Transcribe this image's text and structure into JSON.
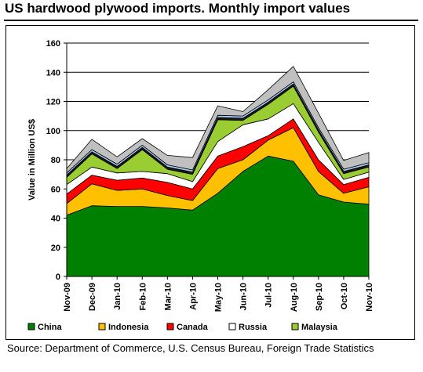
{
  "title": "US hardwood plywood imports. Monthly import values",
  "source": "Source: Department of Commerce, U.S. Census Bureau, Foreign Trade Statistics",
  "chart_data": {
    "type": "area",
    "stacked": true,
    "ylabel": "Value in Million US$",
    "ylim": [
      0,
      160
    ],
    "yticks": [
      0,
      20,
      40,
      60,
      80,
      100,
      120,
      140,
      160
    ],
    "grid": true,
    "legend_position": "bottom",
    "categories": [
      "Nov-09",
      "Dec-09",
      "Jan-10",
      "Feb-10",
      "Mar-10",
      "Apr-10",
      "May-10",
      "Jun-10",
      "Jul-10",
      "Aug-10",
      "Sep-10",
      "Oct-10",
      "Nov-10"
    ],
    "series": [
      {
        "name": "China",
        "color": "#008000",
        "values": [
          42,
          48.5,
          48,
          48,
          47,
          45.5,
          57,
          72,
          82.5,
          79,
          56,
          51,
          49.5
        ],
        "in_legend": true
      },
      {
        "name": "Indonesia",
        "color": "#FFC000",
        "values": [
          8,
          15,
          11,
          12,
          8.5,
          6.5,
          17,
          8,
          11,
          23,
          16,
          6,
          12
        ],
        "in_legend": true
      },
      {
        "name": "Canada",
        "color": "#FF0000",
        "values": [
          6.5,
          6,
          7,
          7.5,
          9,
          8,
          8.5,
          9,
          3,
          6,
          8,
          6,
          6.5
        ],
        "in_legend": true
      },
      {
        "name": "Russia",
        "color": "#FFFFFF",
        "values": [
          6.5,
          5.5,
          5,
          4.5,
          6,
          5,
          10,
          15,
          11.5,
          10.5,
          12,
          3.5,
          3.5
        ],
        "in_legend": true
      },
      {
        "name": "Malaysia",
        "color": "#9ACD32",
        "values": [
          5,
          9,
          3,
          15,
          3,
          5,
          15,
          3,
          10,
          12,
          7,
          4,
          3.5
        ],
        "in_legend": true
      },
      {
        "name": "",
        "color": "#1A1A1A",
        "values": [
          1.5,
          1.5,
          1.5,
          1.5,
          1.5,
          1.5,
          1.5,
          1.5,
          1.5,
          1.5,
          1.5,
          1.5,
          1.5
        ],
        "in_legend": false
      },
      {
        "name": "",
        "color": "#A6CAF0",
        "values": [
          1.5,
          1.5,
          1.5,
          1.5,
          1.5,
          1.5,
          1.5,
          1.5,
          1.5,
          1.5,
          1.5,
          1.5,
          1.5
        ],
        "in_legend": false
      },
      {
        "name": "",
        "color": "#C0C0C0",
        "values": [
          3,
          7,
          5,
          4.5,
          6.5,
          8.5,
          6.5,
          3,
          7,
          10.5,
          10,
          6,
          7
        ],
        "in_legend": false
      }
    ]
  }
}
